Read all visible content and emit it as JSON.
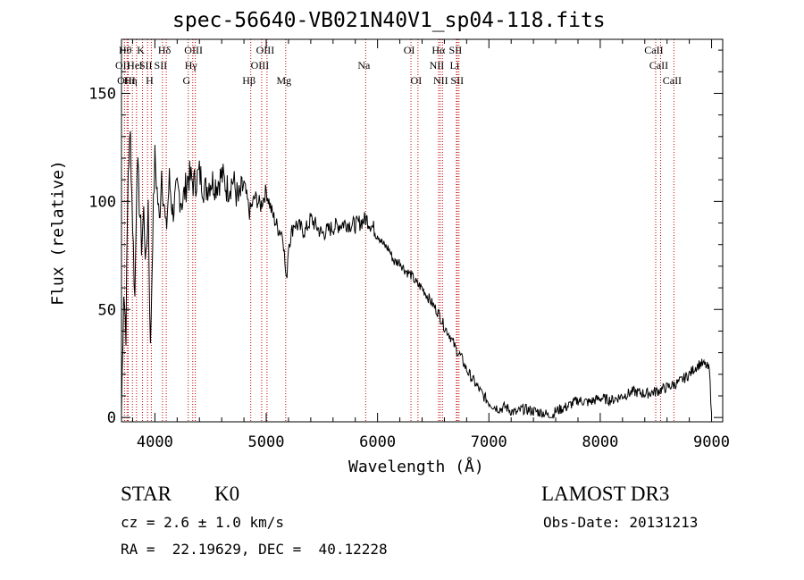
{
  "chart_data": {
    "type": "line",
    "title": "spec-56640-VB021N40V1_sp04-118.fits",
    "xlabel": "Wavelength (Å)",
    "ylabel": "Flux (relative)",
    "xlim": [
      3700,
      9100
    ],
    "ylim": [
      -2,
      175
    ],
    "xticks": [
      4000,
      5000,
      6000,
      7000,
      8000,
      9000
    ],
    "yticks": [
      0,
      50,
      100,
      150
    ],
    "xtick_labels": [
      "4000",
      "5000",
      "6000",
      "7000",
      "8000",
      "9000"
    ],
    "ytick_labels": [
      "0",
      "50",
      "100",
      "150"
    ],
    "series": [
      {
        "name": "spectrum",
        "color": "#000000",
        "x": [
          3700,
          3720,
          3740,
          3760,
          3780,
          3800,
          3820,
          3840,
          3860,
          3880,
          3900,
          3920,
          3940,
          3960,
          3980,
          4000,
          4020,
          4040,
          4060,
          4080,
          4100,
          4130,
          4160,
          4200,
          4250,
          4300,
          4350,
          4400,
          4450,
          4500,
          4550,
          4600,
          4650,
          4700,
          4750,
          4800,
          4850,
          4900,
          4950,
          5000,
          5050,
          5100,
          5150,
          5180,
          5200,
          5250,
          5300,
          5350,
          5400,
          5500,
          5600,
          5700,
          5800,
          5900,
          6000,
          6050,
          6100,
          6150,
          6200,
          6250,
          6300,
          6350,
          6400,
          6450,
          6500,
          6550,
          6600,
          6650,
          6700,
          6750,
          6800,
          6850,
          6900,
          6950,
          7000,
          7050,
          7100,
          7150,
          7200,
          7250,
          7300,
          7400,
          7500,
          7560,
          7600,
          7700,
          7800,
          7900,
          8000,
          8100,
          8200,
          8300,
          8400,
          8500,
          8600,
          8700,
          8800,
          8850,
          8900,
          8950,
          8980,
          9000
        ],
        "y": [
          2,
          60,
          40,
          115,
          130,
          90,
          55,
          120,
          100,
          80,
          95,
          70,
          100,
          30,
          85,
          120,
          105,
          90,
          115,
          100,
          85,
          110,
          95,
          105,
          100,
          112,
          108,
          113,
          105,
          110,
          108,
          112,
          106,
          110,
          100,
          108,
          95,
          102,
          98,
          105,
          95,
          88,
          85,
          62,
          80,
          90,
          88,
          86,
          92,
          85,
          88,
          90,
          89,
          92,
          85,
          80,
          78,
          72,
          72,
          68,
          66,
          62,
          60,
          56,
          52,
          48,
          42,
          38,
          32,
          28,
          22,
          18,
          14,
          10,
          7,
          5,
          4,
          5,
          3,
          2,
          4,
          3,
          2,
          0,
          3,
          5,
          8,
          7,
          9,
          8,
          10,
          12,
          11,
          12,
          14,
          16,
          20,
          23,
          25,
          24,
          22,
          2
        ]
      }
    ],
    "lines": [
      {
        "wl": 3727,
        "label": "OII",
        "row": 2
      },
      {
        "wl": 3750,
        "label": "Hθ",
        "row": 1
      },
      {
        "wl": 3760,
        "label": "OIII",
        "row": 3
      },
      {
        "wl": 3798,
        "label": "Hη",
        "row": 3
      },
      {
        "wl": 3835,
        "label": "Hel",
        "row": 2
      },
      {
        "wl": 3889,
        "label": "K",
        "row": 1
      },
      {
        "wl": 3934,
        "label": "SII",
        "row": 2
      },
      {
        "wl": 3968,
        "label": "H",
        "row": 3
      },
      {
        "wl": 4102,
        "label": "Hδ",
        "row": 1
      },
      {
        "wl": 4068,
        "label": "SII",
        "row": 2
      },
      {
        "wl": 4300,
        "label": "G",
        "row": 3
      },
      {
        "wl": 4340,
        "label": "Hγ",
        "row": 2
      },
      {
        "wl": 4363,
        "label": "OIII",
        "row": 1
      },
      {
        "wl": 4861,
        "label": "Hβ",
        "row": 3
      },
      {
        "wl": 4959,
        "label": "OIII",
        "row": 2
      },
      {
        "wl": 5007,
        "label": "OIII",
        "row": 1
      },
      {
        "wl": 5175,
        "label": "Mg",
        "row": 3
      },
      {
        "wl": 5893,
        "label": "Na",
        "row": 2
      },
      {
        "wl": 6300,
        "label": "OI",
        "row": 1
      },
      {
        "wl": 6363,
        "label": "OI",
        "row": 3
      },
      {
        "wl": 6548,
        "label": "NII",
        "row": 2
      },
      {
        "wl": 6563,
        "label": "Hα",
        "row": 1
      },
      {
        "wl": 6583,
        "label": "NII",
        "row": 3
      },
      {
        "wl": 6708,
        "label": "Li",
        "row": 2
      },
      {
        "wl": 6716,
        "label": "SII",
        "row": 1
      },
      {
        "wl": 6731,
        "label": "SII",
        "row": 3
      },
      {
        "wl": 8498,
        "label": "CaII",
        "row": 1
      },
      {
        "wl": 8542,
        "label": "CaII",
        "row": 2
      },
      {
        "wl": 8662,
        "label": "CaII",
        "row": 3
      }
    ],
    "line_color": "#c00000"
  },
  "info": {
    "object_class": "STAR",
    "subclass": "K0",
    "survey": "LAMOST DR3",
    "redshift": "cz = 2.6 ± 1.0 km/s",
    "obs_date": "Obs-Date: 20131213",
    "coords": "RA =  22.19629, DEC =  40.12228"
  }
}
